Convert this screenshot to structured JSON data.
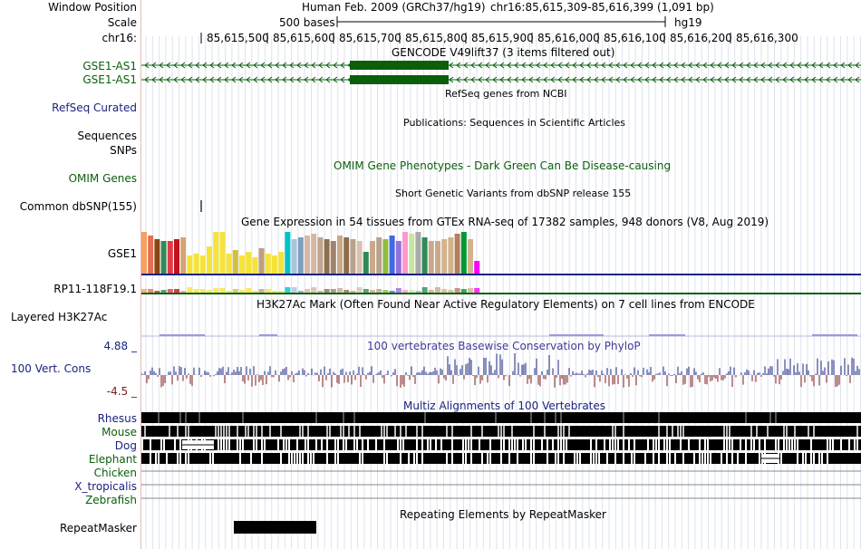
{
  "labels": {
    "window_position": "Window Position",
    "scale": "Scale",
    "chr": "chr16:",
    "gencode1": "GSE1-AS1",
    "gencode2": "GSE1-AS1",
    "refseq": "RefSeq Curated",
    "sequences": "Sequences",
    "snps": "SNPs",
    "omim": "OMIM Genes",
    "dbsnp": "Common dbSNP(155)",
    "gse1": "GSE1",
    "rp11": "RP11-118F19.1",
    "layered": "Layered H3K27Ac",
    "cons_max": "4.88 _",
    "cons_label": "100 Vert. Cons",
    "cons_min": "-4.5 _",
    "rhesus": "Rhesus",
    "mouse": "Mouse",
    "dog": "Dog",
    "elephant": "Elephant",
    "chicken": "Chicken",
    "xtrop": "X_tropicalis",
    "zebrafish": "Zebrafish",
    "repeatmasker": "RepeatMasker"
  },
  "header": {
    "assembly": "Human Feb. 2009 (GRCh37/hg19)",
    "position": "chr16:85,615,309-85,616,399 (1,091 bp)",
    "scale_text": "500 bases",
    "scale_db": "hg19"
  },
  "ruler": {
    "ticks": [
      "85,615,500",
      "85,615,600",
      "85,615,700",
      "85,615,800",
      "85,615,900",
      "85,616,000",
      "85,616,100",
      "85,616,200",
      "85,616,300"
    ]
  },
  "tracks": {
    "gencode_title": "GENCODE V49lift37 (3 items filtered out)",
    "refseq_title": "RefSeq genes from NCBI",
    "pubs_title": "Publications: Sequences in Scientific Articles",
    "omim_title": "OMIM Gene Phenotypes - Dark Green Can Be Disease-causing",
    "dbsnp_title": "Short Genetic Variants from dbSNP release 155",
    "gtex_title": "Gene Expression in 54 tissues from GTEx RNA-seq of 17382 samples, 948 donors (V8, Aug 2019)",
    "h3k27_title": "H3K27Ac Mark (Often Found Near Active Regulatory Elements) on 7 cell lines from ENCODE",
    "phylop_title": "100 vertebrates Basewise Conservation by PhyloP",
    "multiz_title": "Multiz Alignments of 100 Vertebrates",
    "rmsk_title": "Repeating Elements by RepeatMasker"
  },
  "colors": {
    "gencode": "#0a5f0a",
    "navy": "#1a237e",
    "cons_pos": "#1a237e",
    "cons_neg": "#7b1a1a",
    "gtex": [
      "#f4a261",
      "#e76f51",
      "#8b4513",
      "#2e8b57",
      "#e63946",
      "#c1121f",
      "#d4a373",
      "#f6e33a",
      "#f6e33a",
      "#f6e33a",
      "#f6e33a",
      "#f6e33a",
      "#f6e33a",
      "#f6e33a",
      "#d4c03a",
      "#f6e33a",
      "#f6e33a",
      "#f6e33a",
      "#bfa07a",
      "#f6e33a",
      "#f6e33a",
      "#f6e33a",
      "#00c2c7",
      "#a8c5da",
      "#7f9fbf",
      "#d9b7a6",
      "#d4b8a0",
      "#bfa58f",
      "#8b6f4e",
      "#a0826d",
      "#c9a98b",
      "#8b6f4e",
      "#b9a28b",
      "#d9c2ad",
      "#2e8b57",
      "#c9a98b",
      "#b9a28b",
      "#8fbc3f",
      "#4169e1",
      "#9370db",
      "#ff99cc",
      "#c8e6a0",
      "#aaaaaa",
      "#2e8b57",
      "#c9a98b",
      "#c9a98b",
      "#d2b48c",
      "#d2b48c",
      "#b08060",
      "#009933",
      "#d2b48c",
      "#ff00ff"
    ]
  }
}
